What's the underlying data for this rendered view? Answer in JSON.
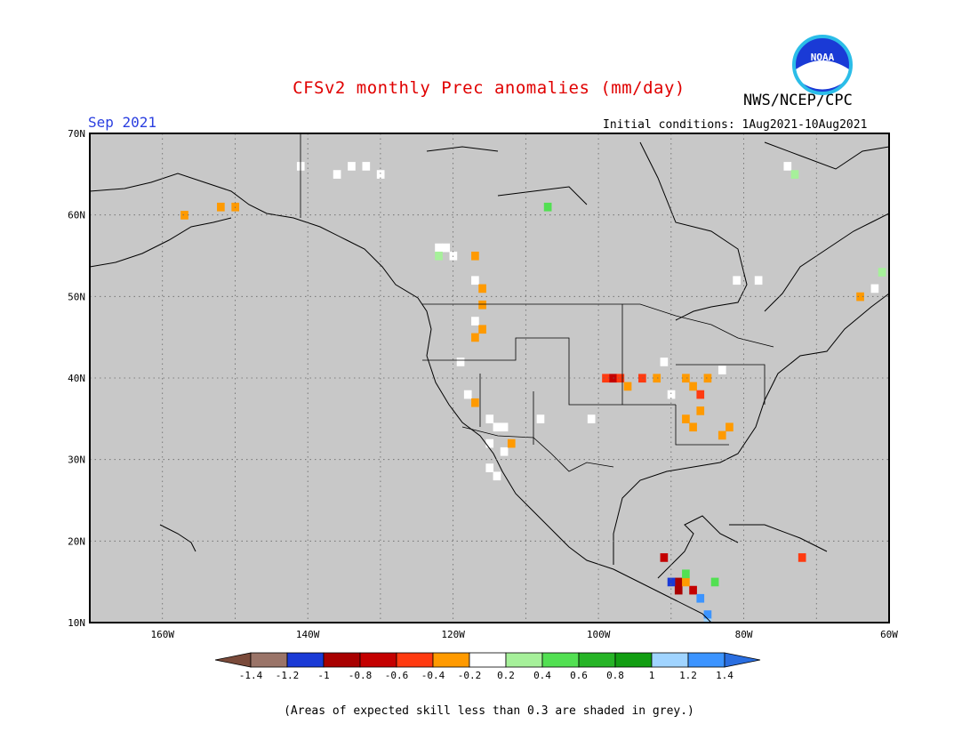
{
  "header": {
    "title": "CFSv2 monthly Prec anomalies (mm/day)",
    "agency": "NWS/NCEP/CPC",
    "logo_text": "NOAA",
    "month": "Sep 2021",
    "initial_conditions": "Initial conditions: 1Aug2021-10Aug2021"
  },
  "map": {
    "lon_range": [
      -170,
      -60
    ],
    "lat_range": [
      10,
      70
    ],
    "background_color": "#c8c8c8",
    "lat_labels": [
      "70N",
      "60N",
      "50N",
      "40N",
      "30N",
      "20N",
      "10N"
    ],
    "lon_labels": [
      "160W",
      "140W",
      "120W",
      "100W",
      "80W",
      "60W"
    ],
    "grid": "dotted"
  },
  "colorbar": {
    "colors": [
      "#7a4a3a",
      "#9a7468",
      "#1a3ad6",
      "#a80000",
      "#c40000",
      "#ff3a10",
      "#ff9a00",
      "#ffffff",
      "#a6f09a",
      "#52e052",
      "#26b426",
      "#129e12",
      "#a0d4ff",
      "#3c94ff",
      "#2a6ee0"
    ],
    "labels": [
      "-1.4",
      "-1.2",
      "-1",
      "-0.8",
      "-0.6",
      "-0.4",
      "-0.2",
      "0.2",
      "0.4",
      "0.6",
      "0.8",
      "1",
      "1.2",
      "1.4"
    ]
  },
  "footnote": "(Areas of expected skill less than 0.3 are shaded in grey.)",
  "anomaly_cells": [
    {
      "lon": -157,
      "lat": 60,
      "v": -0.3
    },
    {
      "lon": -152,
      "lat": 61,
      "v": -0.3
    },
    {
      "lon": -150,
      "lat": 61,
      "v": -0.3
    },
    {
      "lon": -141,
      "lat": 66,
      "v": 0.1
    },
    {
      "lon": -136,
      "lat": 65,
      "v": 0.1
    },
    {
      "lon": -134,
      "lat": 66,
      "v": 0.1
    },
    {
      "lon": -132,
      "lat": 66,
      "v": 0.1
    },
    {
      "lon": -130,
      "lat": 65,
      "v": 0.1
    },
    {
      "lon": -122,
      "lat": 56,
      "v": 0.1
    },
    {
      "lon": -121,
      "lat": 56,
      "v": 0.1
    },
    {
      "lon": -122,
      "lat": 55,
      "v": 0.3
    },
    {
      "lon": -120,
      "lat": 55,
      "v": 0.1
    },
    {
      "lon": -117,
      "lat": 55,
      "v": -0.3
    },
    {
      "lon": -117,
      "lat": 52,
      "v": 0.1
    },
    {
      "lon": -116,
      "lat": 51,
      "v": -0.3
    },
    {
      "lon": -116,
      "lat": 49,
      "v": -0.3
    },
    {
      "lon": -117,
      "lat": 47,
      "v": 0.1
    },
    {
      "lon": -116,
      "lat": 46,
      "v": -0.3
    },
    {
      "lon": -117,
      "lat": 45,
      "v": -0.3
    },
    {
      "lon": -119,
      "lat": 42,
      "v": 0.1
    },
    {
      "lon": -118,
      "lat": 38,
      "v": 0.1
    },
    {
      "lon": -117,
      "lat": 37,
      "v": -0.3
    },
    {
      "lon": -115,
      "lat": 35,
      "v": 0.1
    },
    {
      "lon": -114,
      "lat": 34,
      "v": 0.1
    },
    {
      "lon": -113,
      "lat": 34,
      "v": 0.1
    },
    {
      "lon": -115,
      "lat": 32,
      "v": 0.1
    },
    {
      "lon": -113,
      "lat": 31,
      "v": 0.1
    },
    {
      "lon": -112,
      "lat": 32,
      "v": -0.3
    },
    {
      "lon": -115,
      "lat": 29,
      "v": 0.1
    },
    {
      "lon": -114,
      "lat": 28,
      "v": 0.1
    },
    {
      "lon": -108,
      "lat": 35,
      "v": 0.1
    },
    {
      "lon": -101,
      "lat": 35,
      "v": 0.1
    },
    {
      "lon": -99,
      "lat": 40,
      "v": -0.5
    },
    {
      "lon": -98,
      "lat": 40,
      "v": -0.7
    },
    {
      "lon": -97,
      "lat": 40,
      "v": -0.5
    },
    {
      "lon": -96,
      "lat": 39,
      "v": -0.3
    },
    {
      "lon": -94,
      "lat": 40,
      "v": -0.5
    },
    {
      "lon": -92,
      "lat": 40,
      "v": -0.3
    },
    {
      "lon": -91,
      "lat": 42,
      "v": 0.1
    },
    {
      "lon": -90,
      "lat": 38,
      "v": 0.1
    },
    {
      "lon": -88,
      "lat": 40,
      "v": -0.3
    },
    {
      "lon": -87,
      "lat": 39,
      "v": -0.3
    },
    {
      "lon": -86,
      "lat": 38,
      "v": -0.5
    },
    {
      "lon": -85,
      "lat": 40,
      "v": -0.3
    },
    {
      "lon": -83,
      "lat": 41,
      "v": 0.1
    },
    {
      "lon": -86,
      "lat": 36,
      "v": -0.3
    },
    {
      "lon": -87,
      "lat": 34,
      "v": -0.3
    },
    {
      "lon": -88,
      "lat": 35,
      "v": -0.3
    },
    {
      "lon": -82,
      "lat": 34,
      "v": -0.3
    },
    {
      "lon": -83,
      "lat": 33,
      "v": -0.3
    },
    {
      "lon": -81,
      "lat": 52,
      "v": 0.1
    },
    {
      "lon": -78,
      "lat": 52,
      "v": 0.1
    },
    {
      "lon": -91,
      "lat": 18,
      "v": -0.7
    },
    {
      "lon": -72,
      "lat": 18,
      "v": -0.5
    },
    {
      "lon": -89,
      "lat": 15,
      "v": -0.9
    },
    {
      "lon": -89,
      "lat": 14,
      "v": -0.9
    },
    {
      "lon": -87,
      "lat": 14,
      "v": -0.7
    },
    {
      "lon": -88,
      "lat": 15,
      "v": -0.3
    },
    {
      "lon": -90,
      "lat": 15,
      "v": -1.1
    },
    {
      "lon": -86,
      "lat": 13,
      "v": 1.3
    },
    {
      "lon": -85,
      "lat": 11,
      "v": 1.3
    },
    {
      "lon": -85,
      "lat": 10,
      "v": 1.1
    },
    {
      "lon": -84,
      "lat": 15,
      "v": 0.5
    },
    {
      "lon": -88,
      "lat": 16,
      "v": 0.5
    },
    {
      "lon": -74,
      "lat": 66,
      "v": 0.1
    },
    {
      "lon": -73,
      "lat": 65,
      "v": 0.3
    },
    {
      "lon": -61,
      "lat": 53,
      "v": 0.3
    },
    {
      "lon": -62,
      "lat": 51,
      "v": 0.1
    },
    {
      "lon": -64,
      "lat": 50,
      "v": -0.3
    },
    {
      "lon": -107,
      "lat": 61,
      "v": 0.5
    }
  ]
}
